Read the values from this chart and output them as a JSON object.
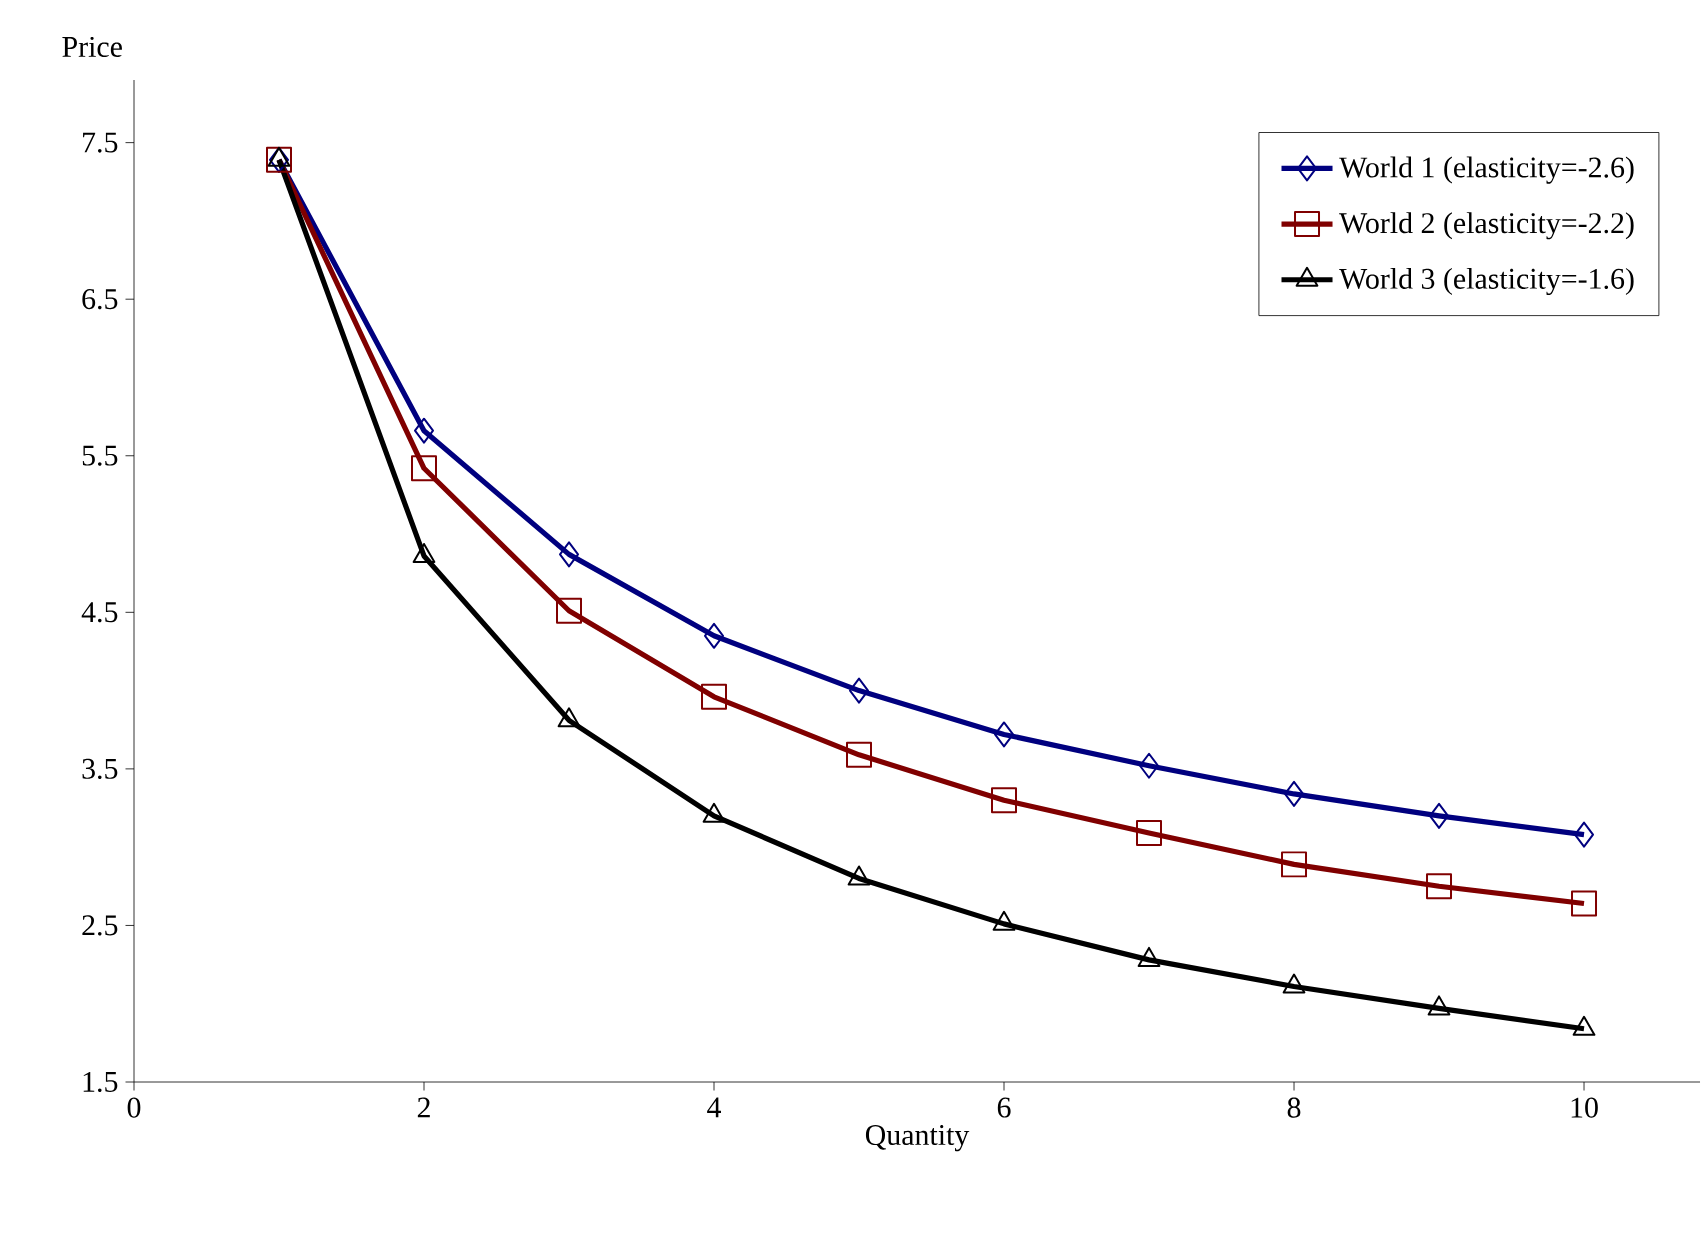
{
  "chart_data": {
    "type": "line",
    "xlabel": "Quantity",
    "ylabel": "Price",
    "x": [
      1,
      2,
      3,
      4,
      5,
      6,
      7,
      8,
      9,
      10
    ],
    "xlim": [
      0,
      10.8
    ],
    "ylim": [
      1.5,
      7.9
    ],
    "xticks": [
      0,
      2,
      4,
      6,
      8,
      10
    ],
    "yticks": [
      1.5,
      2.5,
      3.5,
      4.5,
      5.5,
      6.5,
      7.5
    ],
    "grid": false,
    "legend": "top right",
    "line_style": "solid",
    "series": [
      {
        "name": "World 1 (elasticity=-2.6)",
        "color": "#00007f",
        "marker": "diamond",
        "values": [
          7.39,
          5.66,
          4.87,
          4.35,
          4.0,
          3.72,
          3.52,
          3.34,
          3.2,
          3.08
        ]
      },
      {
        "name": "World 2 (elasticity=-2.2)",
        "color": "#800000",
        "marker": "square",
        "values": [
          7.39,
          5.42,
          4.51,
          3.96,
          3.59,
          3.3,
          3.09,
          2.89,
          2.75,
          2.64
        ]
      },
      {
        "name": "World 3 (elasticity=-1.6)",
        "color": "#000000",
        "marker": "triangle",
        "values": [
          7.39,
          4.86,
          3.81,
          3.2,
          2.8,
          2.51,
          2.28,
          2.11,
          1.97,
          1.84
        ]
      }
    ]
  }
}
